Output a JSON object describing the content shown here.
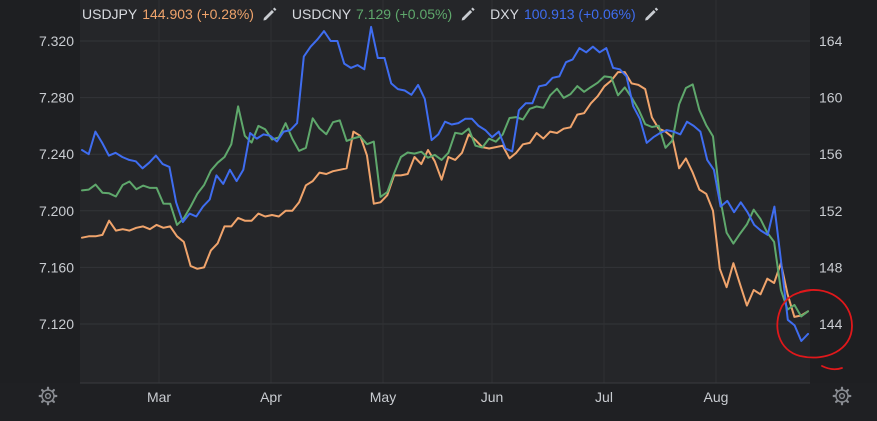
{
  "chart_data": {
    "type": "line",
    "x_ticks": [
      "Mar",
      "Apr",
      "May",
      "Jun",
      "Jul",
      "Aug"
    ],
    "left_axis": {
      "ticks": [
        "7.120",
        "7.160",
        "7.200",
        "7.240",
        "7.280",
        "7.320"
      ]
    },
    "right_axis": {
      "ticks": [
        "144",
        "148",
        "152",
        "156",
        "160",
        "164"
      ]
    },
    "legend": [
      {
        "name": "USDJPY",
        "value": "144.903 (+0.28%)",
        "color": "#f0a46c"
      },
      {
        "name": "USDCNY",
        "value": "7.129 (+0.05%)",
        "color": "#5fa86c"
      },
      {
        "name": "DXY",
        "value": "100.913 (+0.06%)",
        "color": "#3f6df0"
      }
    ],
    "series": [
      {
        "name": "USDJPY",
        "axis": "right",
        "color": "#f0a46c",
        "values": [
          150.1,
          150.2,
          150.2,
          150.3,
          151.3,
          150.6,
          150.7,
          150.6,
          150.8,
          150.9,
          150.7,
          151.0,
          150.8,
          150.9,
          150.2,
          149.8,
          148.1,
          147.9,
          148.0,
          149.2,
          149.7,
          150.9,
          150.9,
          151.5,
          151.3,
          151.3,
          151.8,
          151.6,
          151.7,
          151.6,
          152.0,
          152.0,
          152.6,
          153.8,
          154.1,
          154.7,
          154.6,
          154.8,
          154.9,
          155.0,
          157.6,
          157.3,
          155.9,
          152.5,
          152.6,
          153.1,
          154.5,
          154.5,
          154.6,
          155.8,
          155.3,
          156.3,
          155.5,
          154.2,
          155.8,
          155.6,
          156.1,
          157.4,
          157.0,
          156.5,
          156.4,
          156.5,
          156.6,
          155.7,
          156.1,
          156.7,
          156.8,
          157.5,
          157.1,
          157.6,
          157.5,
          157.8,
          157.9,
          158.8,
          158.9,
          159.6,
          160.1,
          160.8,
          161.2,
          161.8,
          161.8,
          161.0,
          160.9,
          160.6,
          158.6,
          157.8,
          157.6,
          157.2,
          155.0,
          155.7,
          154.7,
          153.5,
          153.2,
          152.0,
          147.9,
          146.6,
          148.3,
          146.8,
          145.3,
          146.4,
          146.1,
          147.2,
          146.9,
          148.3,
          146.1,
          144.5,
          144.6,
          144.9
        ]
      },
      {
        "name": "USDCNY",
        "axis": "left",
        "color": "#5fa86c",
        "values": [
          7.2144,
          7.215,
          7.2185,
          7.2128,
          7.2124,
          7.2101,
          7.2182,
          7.2207,
          7.2153,
          7.2178,
          7.2162,
          7.2162,
          7.2051,
          7.205,
          7.19,
          7.1948,
          7.203,
          7.212,
          7.2182,
          7.2285,
          7.234,
          7.238,
          7.247,
          7.2738,
          7.253,
          7.2482,
          7.26,
          7.2576,
          7.2504,
          7.2519,
          7.2619,
          7.251,
          7.2423,
          7.2445,
          7.2654,
          7.2582,
          7.2541,
          7.2626,
          7.2639,
          7.2494,
          7.2512,
          7.2525,
          7.2471,
          7.2489,
          7.2098,
          7.2132,
          7.2264,
          7.238,
          7.2412,
          7.2404,
          7.2418,
          7.2375,
          7.2395,
          7.236,
          7.241,
          7.2551,
          7.2543,
          7.2581,
          7.246,
          7.2447,
          7.251,
          7.2488,
          7.2539,
          7.2656,
          7.2662,
          7.2645,
          7.2721,
          7.2737,
          7.2728,
          7.2816,
          7.2863,
          7.2798,
          7.2825,
          7.2881,
          7.2841,
          7.2874,
          7.2905,
          7.295,
          7.2944,
          7.2816,
          7.2872,
          7.2801,
          7.2718,
          7.2612,
          7.2592,
          7.2601,
          7.2445,
          7.2496,
          7.2752,
          7.2868,
          7.2893,
          7.2712,
          7.2606,
          7.2526,
          7.2101,
          7.1846,
          7.1768,
          7.1839,
          7.1904,
          7.2008,
          7.1941,
          7.1845,
          7.178,
          7.144,
          7.1302,
          7.1335,
          7.1253,
          7.129
        ]
      },
      {
        "name": "DXY",
        "axis": "right",
        "color": "#3f6df0",
        "values": [
          156.3,
          156.0,
          157.6,
          156.8,
          155.9,
          156.1,
          155.8,
          155.6,
          155.5,
          155.0,
          155.4,
          155.9,
          155.3,
          155.1,
          152.6,
          151.2,
          151.8,
          151.6,
          152.3,
          152.8,
          154.5,
          153.9,
          154.9,
          154.1,
          154.9,
          157.5,
          157.1,
          157.4,
          157.3,
          156.9,
          157.6,
          157.7,
          158.2,
          162.9,
          163.6,
          164.1,
          164.7,
          164.0,
          164.0,
          162.4,
          162.1,
          162.3,
          162.0,
          165.0,
          162.8,
          162.8,
          161.0,
          160.6,
          160.5,
          160.2,
          160.9,
          159.9,
          157.0,
          157.4,
          158.3,
          158.1,
          158.2,
          158.5,
          158.5,
          158.0,
          157.7,
          157.2,
          157.6,
          156.4,
          156.2,
          159.1,
          159.6,
          159.6,
          160.8,
          160.9,
          161.4,
          161.5,
          162.5,
          162.7,
          163.5,
          163.2,
          163.6,
          163.2,
          163.5,
          162.1,
          162.0,
          161.5,
          159.4,
          158.5,
          156.8,
          157.2,
          157.5,
          157.7,
          157.6,
          157.4,
          158.3,
          158.0,
          157.6,
          155.6,
          154.9,
          152.3,
          152.7,
          151.9,
          152.6,
          151.9,
          151.0,
          150.6,
          150.3,
          152.3,
          148.4,
          144.3,
          143.9,
          142.8,
          143.3
        ]
      }
    ]
  }
}
